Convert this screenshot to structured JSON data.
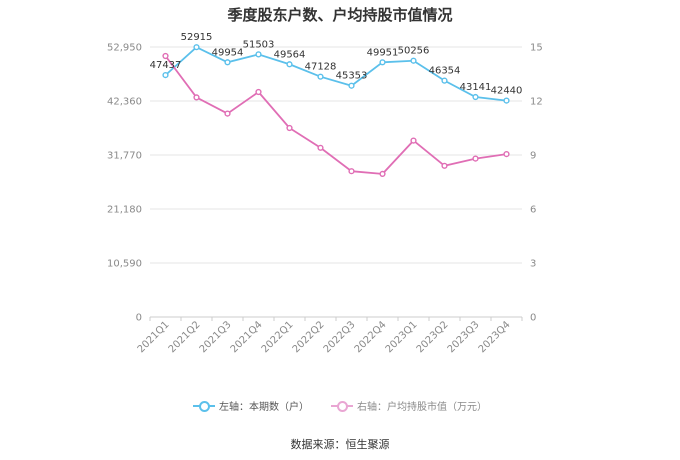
{
  "title": "季度股东户数、户均持股市值情况",
  "source": "数据来源：恒生聚源",
  "colors": {
    "left_series": "#5bc0eb",
    "right_series": "#e06eb5",
    "grid": "#e6e6e6"
  },
  "chart_data": {
    "type": "line",
    "title": "季度股东户数、户均持股市值情况",
    "categories": [
      "2021Q1",
      "2021Q2",
      "2021Q3",
      "2021Q4",
      "2022Q1",
      "2022Q2",
      "2022Q3",
      "2022Q4",
      "2023Q1",
      "2023Q2",
      "2023Q3",
      "2023Q4"
    ],
    "left_axis": {
      "ylim": [
        0,
        52950
      ],
      "ticks": [
        "0",
        "10,590",
        "21,180",
        "31,770",
        "42,360",
        "52,950"
      ]
    },
    "right_axis": {
      "ylim": [
        0,
        15
      ],
      "ticks": [
        "0",
        "3",
        "6",
        "9",
        "12",
        "15"
      ]
    },
    "series": [
      {
        "name": "左轴：本期数（户）",
        "axis": "left",
        "color": "#5bc0eb",
        "values": [
          47437,
          52915,
          49954,
          51503,
          49564,
          47128,
          45353,
          49951,
          50256,
          46354,
          43141,
          42440
        ],
        "labels": [
          "47437",
          "52915",
          "49954",
          "51503",
          "49564",
          "47128",
          "45353",
          "49951",
          "50256",
          "46354",
          "43141",
          "42440"
        ]
      },
      {
        "name": "右轴：户均持股市值（万元）",
        "axis": "right",
        "color": "#e06eb5",
        "values": [
          14.5,
          12.2,
          11.3,
          12.5,
          10.5,
          9.4,
          8.1,
          7.95,
          9.8,
          8.4,
          8.8,
          9.05
        ]
      }
    ],
    "grid": true,
    "legend_position": "bottom"
  }
}
